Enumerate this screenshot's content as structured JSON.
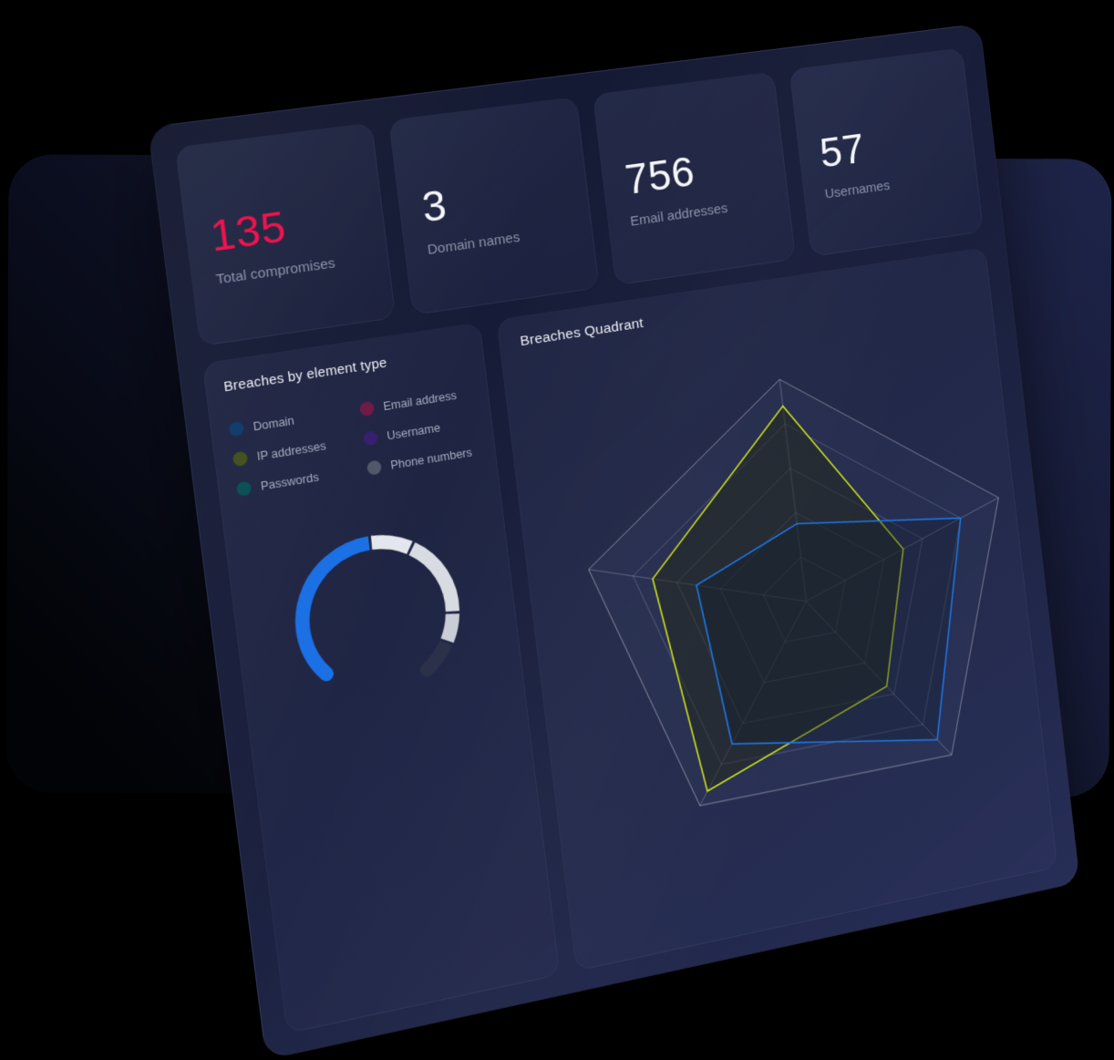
{
  "stats": {
    "cards": [
      {
        "value": "135",
        "label": "Total compromises",
        "value_color": "#f0134e"
      },
      {
        "value": "3",
        "label": "Domain names"
      },
      {
        "value": "756",
        "label": "Email addresses"
      },
      {
        "value": "57",
        "label": "Usernames"
      }
    ]
  },
  "breaches_by_type": {
    "title": "Breaches by element type",
    "legend": [
      {
        "label": "Domain",
        "color": "#123d6d"
      },
      {
        "label": "Email address",
        "color": "#701b46"
      },
      {
        "label": "IP addresses",
        "color": "#46521f"
      },
      {
        "label": "Username",
        "color": "#37206f"
      },
      {
        "label": "Passwords",
        "color": "#0c5156"
      },
      {
        "label": "Phone numbers",
        "color": "#515869"
      }
    ]
  },
  "quadrant": {
    "title": "Breaches Quadrant"
  },
  "chart_data": [
    {
      "type": "donut-gauge",
      "card_title": "Breaches by element type",
      "arc_span_degrees": 276,
      "note": "angles in degrees clockwise from 12 o'clock; gap at bottom",
      "segments": [
        {
          "color": "#1b70e4",
          "start": -130,
          "end": 0
        },
        {
          "color": "#e3e6ec",
          "start": 2,
          "end": 32
        },
        {
          "color": "#d8dbe2",
          "start": 34,
          "end": 96
        },
        {
          "color": "#c9cdd6",
          "start": 98,
          "end": 119
        },
        {
          "color": "#2b3149",
          "start": 121,
          "end": 146
        }
      ]
    },
    {
      "type": "radar",
      "title": "Breaches Quadrant",
      "axes_count": 5,
      "rings": 5,
      "max": 100,
      "axis_order": [
        "top",
        "right",
        "bottom-right",
        "bottom-left",
        "left"
      ],
      "series": [
        {
          "name": "yellow-series",
          "color": "#cbe01e",
          "fill": "rgba(34,40,24,0.50)",
          "values": [
            88,
            50,
            55,
            93,
            71
          ]
        },
        {
          "name": "blue-series",
          "color": "#1d78e8",
          "fill": "rgba(16,30,46,0.35)",
          "values": [
            35,
            80,
            90,
            70,
            51
          ]
        }
      ]
    }
  ]
}
